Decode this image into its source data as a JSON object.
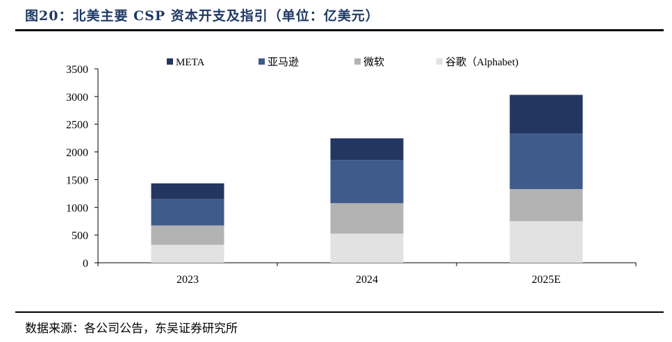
{
  "header": {
    "title": "图20：北美主要 CSP 资本开支及指引（单位：亿美元）"
  },
  "footer": {
    "source": "数据来源：各公司公告，东吴证券研究所"
  },
  "colors": {
    "META": "#233660",
    "亚马逊": "#3f5b8c",
    "微软": "#b3b3b3",
    "谷歌（Alphabet)": "#e2e2e2"
  },
  "chart_data": {
    "type": "bar",
    "stacked": true,
    "title": "图20：北美主要 CSP 资本开支及指引（单位：亿美元）",
    "categories": [
      "2023",
      "2024",
      "2025E"
    ],
    "series": [
      {
        "name": "谷歌（Alphabet)",
        "values": [
          323,
          525,
          750
        ]
      },
      {
        "name": "微软",
        "values": [
          350,
          550,
          580
        ]
      },
      {
        "name": "亚马逊",
        "values": [
          480,
          780,
          1000
        ]
      },
      {
        "name": "META",
        "values": [
          280,
          390,
          700
        ]
      }
    ],
    "legend_order": [
      "META",
      "亚马逊",
      "微软",
      "谷歌（Alphabet)"
    ],
    "legend_position": "top",
    "ylim": [
      0,
      3500
    ],
    "yticks": [
      "0",
      "500",
      "1000",
      "1500",
      "2000",
      "2500",
      "3000",
      "3500"
    ],
    "grid": false,
    "xlabel": "",
    "ylabel": ""
  }
}
